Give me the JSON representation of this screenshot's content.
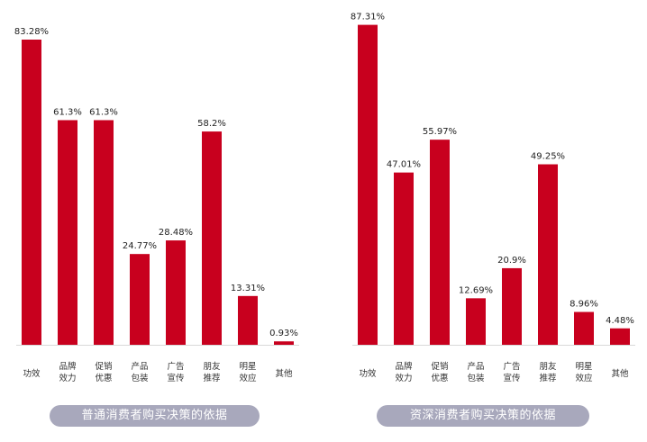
{
  "chart_data": [
    {
      "type": "bar",
      "title": "普通消费者购买决策的依据",
      "categories": [
        [
          "功效"
        ],
        [
          "品牌",
          "效力"
        ],
        [
          "促销",
          "优惠"
        ],
        [
          "产品",
          "包装"
        ],
        [
          "广告",
          "宣传"
        ],
        [
          "朋友",
          "推荐"
        ],
        [
          "明星",
          "效应"
        ],
        [
          "其他"
        ]
      ],
      "values": [
        83.28,
        61.3,
        61.3,
        24.77,
        28.48,
        58.2,
        13.31,
        0.93
      ],
      "value_labels": [
        "83.28%",
        "61.3%",
        "61.3%",
        "24.77%",
        "28.48%",
        "58.2%",
        "13.31%",
        "0.93%"
      ],
      "ylim": [
        0,
        100
      ],
      "color": "#c8001e"
    },
    {
      "type": "bar",
      "title": "资深消费者购买决策的依据",
      "categories": [
        [
          "功效"
        ],
        [
          "品牌",
          "效力"
        ],
        [
          "促销",
          "优惠"
        ],
        [
          "产品",
          "包装"
        ],
        [
          "广告",
          "宣传"
        ],
        [
          "朋友",
          "推荐"
        ],
        [
          "明星",
          "效应"
        ],
        [
          "其他"
        ]
      ],
      "values": [
        87.31,
        47.01,
        55.97,
        12.69,
        20.9,
        49.25,
        8.96,
        4.48
      ],
      "value_labels": [
        "87.31%",
        "47.01%",
        "55.97%",
        "12.69%",
        "20.9%",
        "49.25%",
        "8.96%",
        "4.48%"
      ],
      "ylim": [
        0,
        100
      ],
      "color": "#c8001e"
    }
  ]
}
